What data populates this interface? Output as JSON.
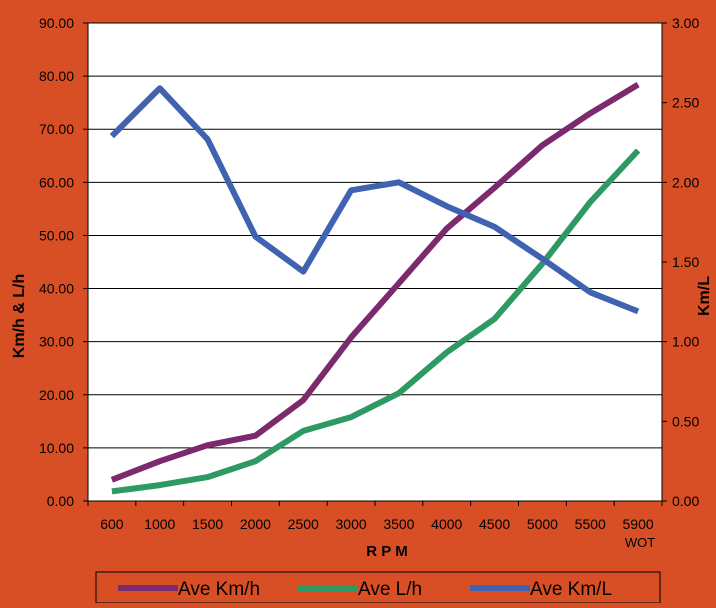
{
  "colors": {
    "background": "#d94f25",
    "plot_area": "#ffffff",
    "gridline": "#000000",
    "axis_text": "#000000",
    "ave_kmh": "#7b2a6e",
    "ave_lh": "#2e9a63",
    "ave_kml": "#3f63b0"
  },
  "chart_data": {
    "type": "line",
    "categories": [
      "600",
      "1000",
      "1500",
      "2000",
      "2500",
      "3000",
      "3500",
      "4000",
      "4500",
      "5000",
      "5500",
      "5900"
    ],
    "category_sublabels": [
      "",
      "",
      "",
      "",
      "",
      "",
      "",
      "",
      "",
      "",
      "",
      "WOT"
    ],
    "xlabel": "R P M",
    "ylabel": "Km/h & L/h",
    "y2label": "Km/L",
    "ylim": [
      0,
      90
    ],
    "y2lim": [
      0,
      3
    ],
    "yticks": [
      "0.00",
      "10.00",
      "20.00",
      "30.00",
      "40.00",
      "50.00",
      "60.00",
      "70.00",
      "80.00",
      "90.00"
    ],
    "y2ticks": [
      "0.00",
      "0.50",
      "1.00",
      "1.50",
      "2.00",
      "2.50",
      "3.00"
    ],
    "grid": true,
    "legend_position": "bottom",
    "series": [
      {
        "name": "Ave Km/h",
        "axis": "left",
        "color": "#7b2a6e",
        "values": [
          4.0,
          7.5,
          10.5,
          12.3,
          19.0,
          30.8,
          41.0,
          51.3,
          59.0,
          67.0,
          73.0,
          78.4
        ]
      },
      {
        "name": "Ave L/h",
        "axis": "left",
        "color": "#2e9a63",
        "values": [
          1.8,
          3.0,
          4.5,
          7.5,
          13.2,
          15.8,
          20.3,
          28.0,
          34.3,
          44.7,
          56.3,
          66.0
        ]
      },
      {
        "name": "Ave Km/L",
        "axis": "right",
        "color": "#3f63b0",
        "values": [
          2.29,
          2.59,
          2.27,
          1.66,
          1.44,
          1.95,
          2.0,
          1.85,
          1.72,
          1.52,
          1.31,
          1.19
        ]
      }
    ]
  }
}
